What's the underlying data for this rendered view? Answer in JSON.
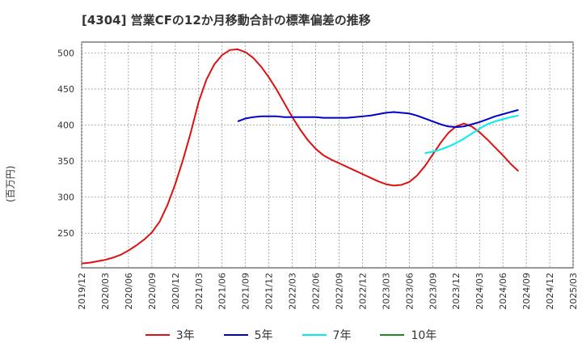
{
  "chart_data": {
    "type": "line",
    "title": "[4304]  営業CFの12か月移動合計の標準偏差の推移",
    "ylabel": "(百万円)",
    "xlabel": "",
    "ylim": [
      202,
      515
    ],
    "yticks": [
      250,
      300,
      350,
      400,
      450,
      500
    ],
    "xlim": [
      "2019-12",
      "2025-03"
    ],
    "xticks": [
      "2019/12",
      "2020/03",
      "2020/06",
      "2020/09",
      "2020/12",
      "2021/03",
      "2021/06",
      "2021/09",
      "2021/12",
      "2022/03",
      "2022/06",
      "2022/09",
      "2022/12",
      "2023/03",
      "2023/06",
      "2023/09",
      "2023/12",
      "2024/03",
      "2024/06",
      "2024/09",
      "2024/12",
      "2025/03"
    ],
    "grid": true,
    "legend_position": "bottom",
    "series": [
      {
        "name": "3年",
        "color": "#dd1111",
        "points": [
          [
            "2019-12",
            208
          ],
          [
            "2020-01",
            209
          ],
          [
            "2020-02",
            211
          ],
          [
            "2020-03",
            213
          ],
          [
            "2020-04",
            216
          ],
          [
            "2020-05",
            220
          ],
          [
            "2020-06",
            226
          ],
          [
            "2020-07",
            233
          ],
          [
            "2020-08",
            241
          ],
          [
            "2020-09",
            251
          ],
          [
            "2020-10",
            266
          ],
          [
            "2020-11",
            289
          ],
          [
            "2020-12",
            318
          ],
          [
            "2021-01",
            352
          ],
          [
            "2021-02",
            390
          ],
          [
            "2021-03",
            432
          ],
          [
            "2021-04",
            463
          ],
          [
            "2021-05",
            484
          ],
          [
            "2021-06",
            497
          ],
          [
            "2021-07",
            504
          ],
          [
            "2021-08",
            505
          ],
          [
            "2021-09",
            501
          ],
          [
            "2021-10",
            493
          ],
          [
            "2021-11",
            481
          ],
          [
            "2021-12",
            466
          ],
          [
            "2022-01",
            449
          ],
          [
            "2022-02",
            430
          ],
          [
            "2022-03",
            411
          ],
          [
            "2022-04",
            394
          ],
          [
            "2022-05",
            379
          ],
          [
            "2022-06",
            367
          ],
          [
            "2022-07",
            358
          ],
          [
            "2022-08",
            352
          ],
          [
            "2022-09",
            347
          ],
          [
            "2022-10",
            342
          ],
          [
            "2022-11",
            337
          ],
          [
            "2022-12",
            332
          ],
          [
            "2023-01",
            327
          ],
          [
            "2023-02",
            322
          ],
          [
            "2023-03",
            318
          ],
          [
            "2023-04",
            316
          ],
          [
            "2023-05",
            317
          ],
          [
            "2023-06",
            321
          ],
          [
            "2023-07",
            330
          ],
          [
            "2023-08",
            343
          ],
          [
            "2023-09",
            359
          ],
          [
            "2023-10",
            375
          ],
          [
            "2023-11",
            389
          ],
          [
            "2023-12",
            398
          ],
          [
            "2024-01",
            402
          ],
          [
            "2024-02",
            398
          ],
          [
            "2024-03",
            390
          ],
          [
            "2024-04",
            380
          ],
          [
            "2024-05",
            369
          ],
          [
            "2024-06",
            358
          ],
          [
            "2024-07",
            346
          ],
          [
            "2024-08",
            336
          ]
        ]
      },
      {
        "name": "5年",
        "color": "#0000cc",
        "points": [
          [
            "2021-08",
            405
          ],
          [
            "2021-09",
            409
          ],
          [
            "2021-10",
            411
          ],
          [
            "2021-11",
            412
          ],
          [
            "2021-12",
            412
          ],
          [
            "2022-01",
            412
          ],
          [
            "2022-02",
            411
          ],
          [
            "2022-03",
            411
          ],
          [
            "2022-04",
            411
          ],
          [
            "2022-05",
            411
          ],
          [
            "2022-06",
            411
          ],
          [
            "2022-07",
            410
          ],
          [
            "2022-08",
            410
          ],
          [
            "2022-09",
            410
          ],
          [
            "2022-10",
            410
          ],
          [
            "2022-11",
            411
          ],
          [
            "2022-12",
            412
          ],
          [
            "2023-01",
            413
          ],
          [
            "2023-02",
            415
          ],
          [
            "2023-03",
            417
          ],
          [
            "2023-04",
            418
          ],
          [
            "2023-05",
            417
          ],
          [
            "2023-06",
            416
          ],
          [
            "2023-07",
            413
          ],
          [
            "2023-08",
            409
          ],
          [
            "2023-09",
            405
          ],
          [
            "2023-10",
            401
          ],
          [
            "2023-11",
            398
          ],
          [
            "2023-12",
            397
          ],
          [
            "2024-01",
            398
          ],
          [
            "2024-02",
            401
          ],
          [
            "2024-03",
            404
          ],
          [
            "2024-04",
            408
          ],
          [
            "2024-05",
            412
          ],
          [
            "2024-06",
            415
          ],
          [
            "2024-07",
            418
          ],
          [
            "2024-08",
            421
          ]
        ]
      },
      {
        "name": "7年",
        "color": "#00eeee",
        "points": [
          [
            "2023-08",
            361
          ],
          [
            "2023-09",
            363
          ],
          [
            "2023-10",
            366
          ],
          [
            "2023-11",
            370
          ],
          [
            "2023-12",
            375
          ],
          [
            "2024-01",
            381
          ],
          [
            "2024-02",
            388
          ],
          [
            "2024-03",
            395
          ],
          [
            "2024-04",
            401
          ],
          [
            "2024-05",
            405
          ],
          [
            "2024-06",
            408
          ],
          [
            "2024-07",
            411
          ],
          [
            "2024-08",
            413
          ]
        ]
      },
      {
        "name": "10年",
        "color": "#228822",
        "points": []
      }
    ]
  }
}
